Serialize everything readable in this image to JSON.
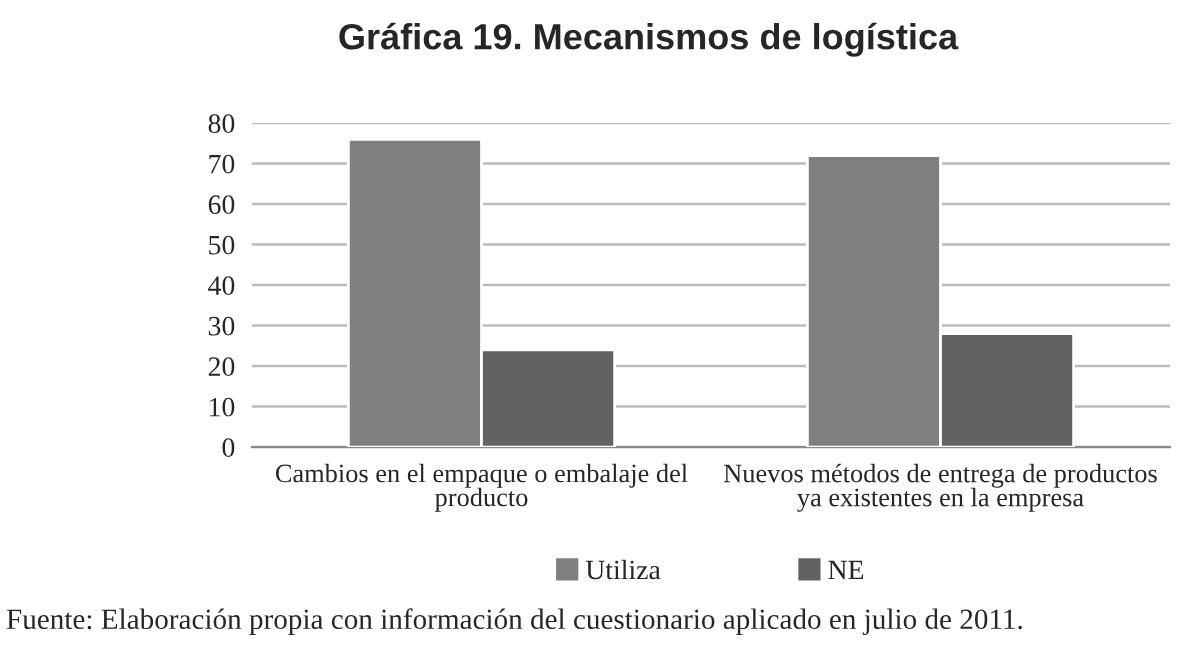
{
  "chart_data": {
    "type": "bar",
    "title": "Gráfica 19. Mecanismos de logística",
    "categories": [
      "Cambios en el empaque o embalaje del producto",
      "Nuevos métodos de entrega de productos ya existentes en la empresa"
    ],
    "series": [
      {
        "name": "Utiliza",
        "color": "#7f7f7f",
        "values": [
          76,
          72
        ]
      },
      {
        "name": "NE",
        "color": "#626262",
        "values": [
          24,
          28
        ]
      }
    ],
    "ylim": [
      0,
      80
    ],
    "yticks": [
      0,
      10,
      20,
      30,
      40,
      50,
      60,
      70,
      80
    ],
    "grid": "y",
    "legend": "bottom",
    "annotations": [
      "Fuente: Elaboración propia con información del cuestionario aplicado en julio de 2011."
    ]
  }
}
